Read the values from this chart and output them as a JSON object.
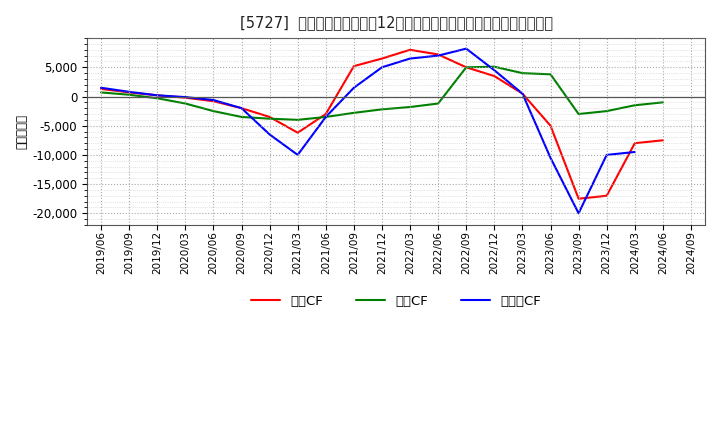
{
  "title": "[5727]  キャッシュフローの12か月移動合計の対前年同期増減額の推移",
  "ylabel": "（百万円）",
  "background_color": "#ffffff",
  "plot_background_color": "#ffffff",
  "legend_labels": [
    "営業CF",
    "投資CF",
    "フリーCF"
  ],
  "line_colors": [
    "#ff0000",
    "#008000",
    "#0000ff"
  ],
  "x_labels": [
    "2019/06",
    "2019/09",
    "2019/12",
    "2020/03",
    "2020/06",
    "2020/09",
    "2020/12",
    "2021/03",
    "2021/06",
    "2021/09",
    "2021/12",
    "2022/03",
    "2022/06",
    "2022/09",
    "2022/12",
    "2023/03",
    "2023/06",
    "2023/09",
    "2023/12",
    "2024/03",
    "2024/06",
    "2024/09"
  ],
  "sales_cf": [
    1300,
    700,
    200,
    -200,
    -800,
    -2000,
    -3500,
    -6200,
    -3000,
    5200,
    6500,
    8000,
    7200,
    5000,
    3500,
    500,
    -5000,
    -17500,
    -17000,
    -8000,
    -7500,
    null
  ],
  "invest_cf": [
    700,
    300,
    -300,
    -1200,
    -2500,
    -3500,
    -3800,
    -4000,
    -3500,
    -2800,
    -2200,
    -1800,
    -1200,
    5000,
    5100,
    4000,
    3800,
    -3000,
    -2500,
    -1500,
    -1000,
    null
  ],
  "free_cf": [
    1500,
    800,
    200,
    -100,
    -600,
    -2000,
    -6500,
    -10000,
    -3500,
    1500,
    5000,
    6500,
    7000,
    8200,
    4500,
    500,
    -10500,
    -20000,
    -10000,
    -9500,
    null,
    null
  ],
  "ylim": [
    -22000,
    10000
  ],
  "yticks": [
    -20000,
    -15000,
    -10000,
    -5000,
    0,
    5000
  ],
  "grid_color": "#aaaaaa",
  "zero_line_color": "#555555"
}
